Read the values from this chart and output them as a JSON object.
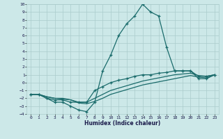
{
  "xlabel": "Humidex (Indice chaleur)",
  "bg_color": "#cce8e8",
  "grid_color": "#aacccc",
  "line_color": "#1a6b6b",
  "xlim": [
    -0.5,
    23.5
  ],
  "ylim": [
    -4,
    10
  ],
  "xticks": [
    0,
    1,
    2,
    3,
    4,
    5,
    6,
    7,
    8,
    9,
    10,
    11,
    12,
    13,
    14,
    15,
    16,
    17,
    18,
    19,
    20,
    21,
    22,
    23
  ],
  "yticks": [
    -4,
    -3,
    -2,
    -1,
    0,
    1,
    2,
    3,
    4,
    5,
    6,
    7,
    8,
    9,
    10
  ],
  "series1_x": [
    0,
    1,
    2,
    3,
    4,
    5,
    6,
    7,
    8,
    9,
    10,
    11,
    12,
    13,
    14,
    15,
    16,
    17,
    18,
    19,
    20,
    21,
    22,
    23
  ],
  "series1_y": [
    -1.5,
    -1.5,
    -2.0,
    -2.5,
    -2.5,
    -3.0,
    -3.5,
    -3.7,
    -2.5,
    1.5,
    3.5,
    6.0,
    7.5,
    8.5,
    10.0,
    9.0,
    8.5,
    4.5,
    1.5,
    1.5,
    1.5,
    0.5,
    0.5,
    1.0
  ],
  "series2_x": [
    0,
    1,
    2,
    3,
    4,
    5,
    6,
    7,
    8,
    9,
    10,
    11,
    12,
    13,
    14,
    15,
    16,
    17,
    18,
    19,
    20,
    21,
    22,
    23
  ],
  "series2_y": [
    -1.5,
    -1.5,
    -2.0,
    -2.2,
    -2.2,
    -2.5,
    -2.5,
    -2.5,
    -1.0,
    -0.5,
    0.0,
    0.3,
    0.5,
    0.8,
    1.0,
    1.0,
    1.2,
    1.3,
    1.5,
    1.5,
    1.5,
    0.8,
    0.8,
    1.0
  ],
  "series3_x": [
    0,
    1,
    2,
    3,
    4,
    5,
    6,
    7,
    8,
    9,
    10,
    11,
    12,
    13,
    14,
    15,
    16,
    17,
    18,
    19,
    20,
    21,
    22,
    23
  ],
  "series3_y": [
    -1.5,
    -1.5,
    -1.8,
    -2.0,
    -2.0,
    -2.2,
    -2.5,
    -2.5,
    -2.0,
    -1.5,
    -1.0,
    -0.7,
    -0.4,
    -0.1,
    0.2,
    0.4,
    0.6,
    0.8,
    1.0,
    1.1,
    1.2,
    0.9,
    0.8,
    1.0
  ],
  "series4_x": [
    0,
    1,
    2,
    3,
    4,
    5,
    6,
    7,
    8,
    9,
    10,
    11,
    12,
    13,
    14,
    15,
    16,
    17,
    18,
    19,
    20,
    21,
    22,
    23
  ],
  "series4_y": [
    -1.5,
    -1.5,
    -1.8,
    -2.0,
    -2.1,
    -2.2,
    -2.6,
    -2.7,
    -2.4,
    -2.0,
    -1.5,
    -1.2,
    -0.9,
    -0.6,
    -0.3,
    -0.1,
    0.1,
    0.3,
    0.5,
    0.7,
    0.9,
    0.7,
    0.6,
    1.0
  ]
}
